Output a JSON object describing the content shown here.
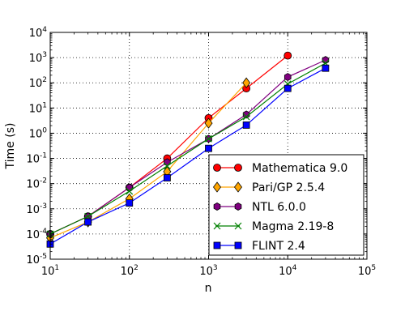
{
  "chart_data": {
    "type": "line",
    "xscale": "log",
    "yscale": "log",
    "xlabel": "n",
    "ylabel": "Time (s)",
    "xlim": [
      10,
      100000
    ],
    "ylim": [
      1e-05,
      10000
    ],
    "x_ticks": [
      {
        "base": "10",
        "exp": "1",
        "value": 10
      },
      {
        "base": "10",
        "exp": "2",
        "value": 100
      },
      {
        "base": "10",
        "exp": "3",
        "value": 1000
      },
      {
        "base": "10",
        "exp": "4",
        "value": 10000
      },
      {
        "base": "10",
        "exp": "5",
        "value": 100000
      }
    ],
    "y_ticks": [
      {
        "base": "10",
        "exp": "-5",
        "value": 1e-05
      },
      {
        "base": "10",
        "exp": "-4",
        "value": 0.0001
      },
      {
        "base": "10",
        "exp": "-3",
        "value": 0.001
      },
      {
        "base": "10",
        "exp": "-2",
        "value": 0.01
      },
      {
        "base": "10",
        "exp": "-1",
        "value": 0.1
      },
      {
        "base": "10",
        "exp": "0",
        "value": 1
      },
      {
        "base": "10",
        "exp": "1",
        "value": 10
      },
      {
        "base": "10",
        "exp": "2",
        "value": 100
      },
      {
        "base": "10",
        "exp": "3",
        "value": 1000
      },
      {
        "base": "10",
        "exp": "4",
        "value": 10000
      }
    ],
    "grid": true,
    "legend_position": "lower-right",
    "series": [
      {
        "name": "Mathematica 9.0",
        "color": "#ff0000",
        "marker": "circle",
        "x": [
          10,
          30,
          100,
          300,
          1000,
          3000,
          10000
        ],
        "y": [
          0.0001,
          0.0005,
          0.007,
          0.1,
          4,
          60,
          1200
        ]
      },
      {
        "name": "Pari/GP 2.5.4",
        "color": "#ffa500",
        "marker": "diamond",
        "x": [
          10,
          30,
          100,
          300,
          1000,
          3000
        ],
        "y": [
          7e-05,
          0.0003,
          0.0025,
          0.03,
          2.5,
          100
        ]
      },
      {
        "name": "NTL 6.0.0",
        "color": "#800080",
        "marker": "hexagon",
        "x": [
          10,
          30,
          100,
          300,
          1000,
          3000,
          10000,
          30000
        ],
        "y": [
          0.0001,
          0.0005,
          0.007,
          0.07,
          0.6,
          5.5,
          170,
          800
        ]
      },
      {
        "name": "Magma 2.19-8",
        "color": "#008000",
        "marker": "x",
        "x": [
          10,
          30,
          100,
          300,
          1000,
          3000,
          10000,
          30000
        ],
        "y": [
          0.0001,
          0.0005,
          0.005,
          0.05,
          0.6,
          4.5,
          90,
          600
        ]
      },
      {
        "name": "FLINT 2.4",
        "color": "#0000ff",
        "marker": "square",
        "x": [
          10,
          30,
          100,
          300,
          1000,
          3000,
          10000,
          30000
        ],
        "y": [
          4e-05,
          0.0003,
          0.0017,
          0.017,
          0.25,
          2.1,
          60,
          380
        ]
      }
    ]
  }
}
